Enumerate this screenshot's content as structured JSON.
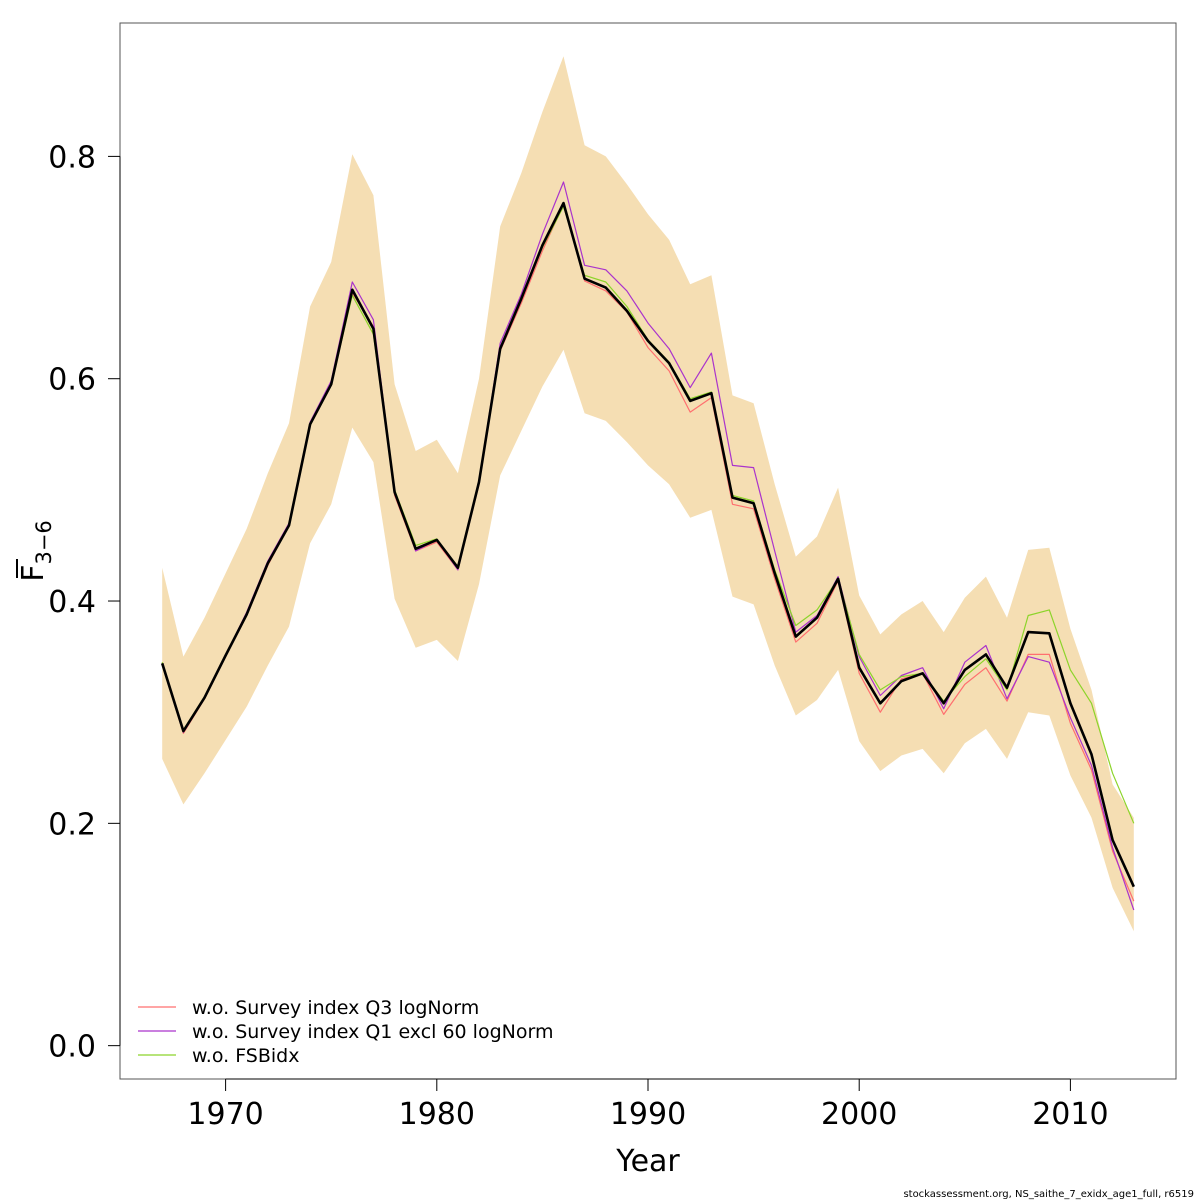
{
  "chart_data": {
    "type": "line",
    "xlabel": "Year",
    "ylabel": {
      "main": "F",
      "sub": "3−6"
    },
    "xlim": [
      1965,
      2015
    ],
    "ylim": [
      -0.03,
      0.92
    ],
    "xticks": [
      1970,
      1980,
      1990,
      2000,
      2010
    ],
    "yticks": [
      0.0,
      0.2,
      0.4,
      0.6,
      0.8
    ],
    "ytick_labels": [
      "0.0",
      "0.2",
      "0.4",
      "0.6",
      "0.8"
    ],
    "x": [
      1967,
      1968,
      1969,
      1970,
      1971,
      1972,
      1973,
      1974,
      1975,
      1976,
      1977,
      1978,
      1979,
      1980,
      1981,
      1982,
      1983,
      1984,
      1985,
      1986,
      1987,
      1988,
      1989,
      1990,
      1991,
      1992,
      1993,
      1994,
      1995,
      1996,
      1997,
      1998,
      1999,
      2000,
      2001,
      2002,
      2003,
      2004,
      2005,
      2006,
      2007,
      2008,
      2009,
      2010,
      2011,
      2012,
      2013
    ],
    "band": {
      "color": "#F5DEB3",
      "upper": [
        0.43,
        0.35,
        0.385,
        0.425,
        0.465,
        0.515,
        0.56,
        0.665,
        0.705,
        0.802,
        0.765,
        0.595,
        0.535,
        0.545,
        0.515,
        0.6,
        0.737,
        0.785,
        0.84,
        0.89,
        0.81,
        0.8,
        0.775,
        0.748,
        0.725,
        0.685,
        0.693,
        0.585,
        0.578,
        0.505,
        0.44,
        0.458,
        0.502,
        0.405,
        0.37,
        0.388,
        0.4,
        0.372,
        0.403,
        0.422,
        0.385,
        0.446,
        0.448,
        0.375,
        0.32,
        0.235,
        0.205
      ],
      "lower": [
        0.258,
        0.217,
        0.245,
        0.275,
        0.305,
        0.342,
        0.377,
        0.452,
        0.487,
        0.556,
        0.525,
        0.402,
        0.358,
        0.365,
        0.346,
        0.415,
        0.513,
        0.553,
        0.593,
        0.626,
        0.569,
        0.562,
        0.543,
        0.522,
        0.505,
        0.475,
        0.482,
        0.404,
        0.397,
        0.342,
        0.297,
        0.311,
        0.338,
        0.274,
        0.247,
        0.261,
        0.267,
        0.245,
        0.272,
        0.285,
        0.258,
        0.3,
        0.297,
        0.243,
        0.205,
        0.142,
        0.103
      ]
    },
    "series": [
      {
        "name": "w.o. Survey index Q3 logNorm",
        "color": "#FF6F6F",
        "width": 1.2,
        "values": [
          0.343,
          0.281,
          0.312,
          0.35,
          0.387,
          0.432,
          0.468,
          0.558,
          0.594,
          0.677,
          0.647,
          0.495,
          0.445,
          0.453,
          0.428,
          0.505,
          0.625,
          0.668,
          0.715,
          0.757,
          0.688,
          0.679,
          0.66,
          0.628,
          0.607,
          0.57,
          0.583,
          0.487,
          0.483,
          0.42,
          0.363,
          0.38,
          0.418,
          0.335,
          0.3,
          0.33,
          0.335,
          0.298,
          0.325,
          0.34,
          0.31,
          0.352,
          0.352,
          0.29,
          0.248,
          0.175,
          0.13
        ]
      },
      {
        "name": "w.o. Survey index Q1 excl 60 logNorm",
        "color": "#AA33CC",
        "width": 1.2,
        "values": [
          0.344,
          0.282,
          0.313,
          0.351,
          0.39,
          0.436,
          0.47,
          0.561,
          0.598,
          0.687,
          0.653,
          0.498,
          0.445,
          0.455,
          0.428,
          0.508,
          0.632,
          0.676,
          0.73,
          0.777,
          0.702,
          0.698,
          0.679,
          0.65,
          0.627,
          0.592,
          0.623,
          0.522,
          0.52,
          0.445,
          0.372,
          0.387,
          0.422,
          0.35,
          0.315,
          0.333,
          0.34,
          0.303,
          0.345,
          0.36,
          0.312,
          0.35,
          0.345,
          0.295,
          0.252,
          0.178,
          0.122
        ]
      },
      {
        "name": "w.o. FSBidx",
        "color": "#8CD42A",
        "width": 1.2,
        "values": [
          0.345,
          0.284,
          0.314,
          0.351,
          0.388,
          0.433,
          0.468,
          0.558,
          0.595,
          0.675,
          0.64,
          0.5,
          0.45,
          0.456,
          0.43,
          0.506,
          0.627,
          0.672,
          0.718,
          0.755,
          0.693,
          0.687,
          0.665,
          0.635,
          0.615,
          0.582,
          0.588,
          0.495,
          0.49,
          0.428,
          0.378,
          0.392,
          0.42,
          0.352,
          0.32,
          0.332,
          0.335,
          0.31,
          0.332,
          0.348,
          0.32,
          0.387,
          0.392,
          0.338,
          0.308,
          0.245,
          0.2
        ]
      },
      {
        "name": "",
        "color": "#000000",
        "width": 2.6,
        "values": [
          0.344,
          0.283,
          0.313,
          0.351,
          0.388,
          0.434,
          0.468,
          0.559,
          0.595,
          0.68,
          0.645,
          0.498,
          0.447,
          0.455,
          0.43,
          0.507,
          0.627,
          0.672,
          0.72,
          0.758,
          0.69,
          0.682,
          0.661,
          0.634,
          0.614,
          0.58,
          0.587,
          0.493,
          0.488,
          0.425,
          0.368,
          0.385,
          0.42,
          0.34,
          0.308,
          0.328,
          0.335,
          0.308,
          0.338,
          0.352,
          0.322,
          0.372,
          0.371,
          0.308,
          0.262,
          0.185,
          0.143
        ]
      }
    ],
    "legend": {
      "placement": "bottom-left",
      "entries": [
        {
          "label": "w.o. Survey index Q3 logNorm",
          "color": "#FF6F6F"
        },
        {
          "label": "w.o. Survey index Q1 excl 60 logNorm",
          "color": "#AA33CC"
        },
        {
          "label": "w.o. FSBidx",
          "color": "#8CD42A"
        }
      ]
    }
  },
  "footer": "stockassessment.org, NS_saithe_7_exidx_age1_full, r6519"
}
